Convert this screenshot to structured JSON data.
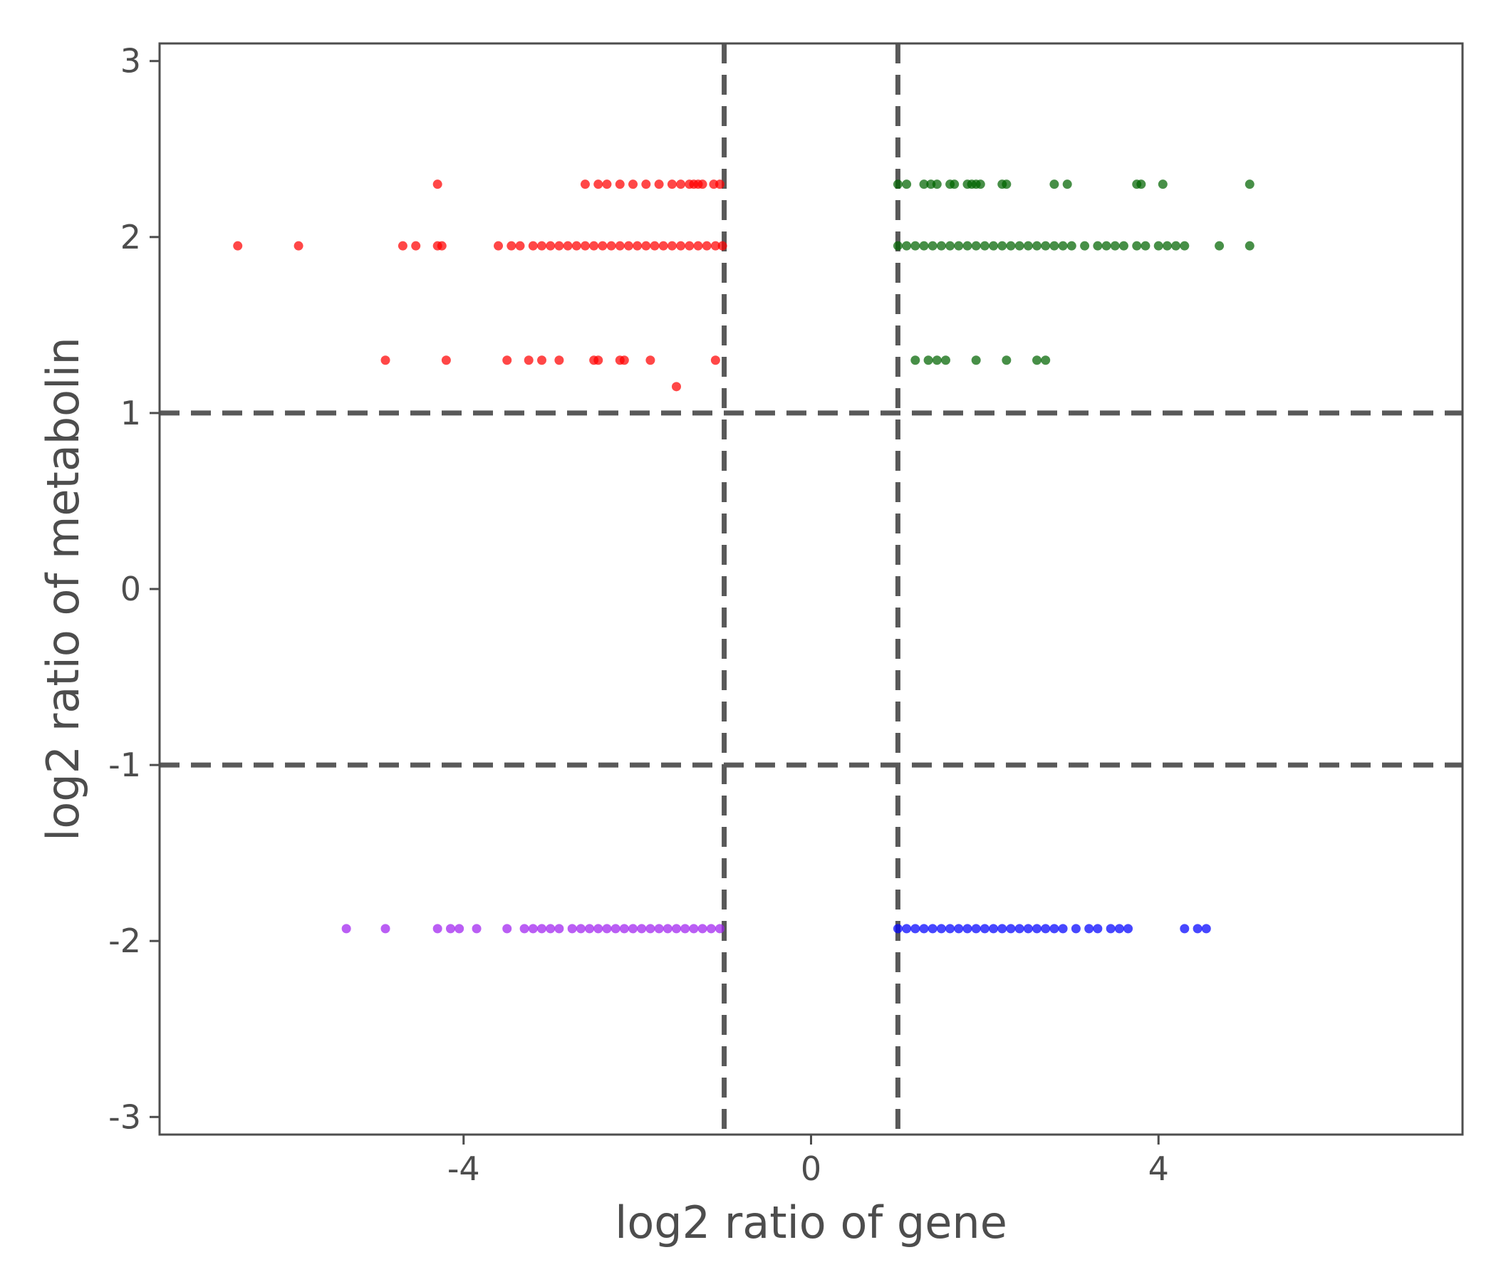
{
  "chart_data": {
    "type": "scatter",
    "title": "",
    "xlabel": "log2 ratio of gene",
    "ylabel": "log2 ratio of metabolin",
    "xlim": [
      -7.5,
      7.5
    ],
    "ylim": [
      -3.1,
      3.1
    ],
    "x_ticks": [
      -4,
      0,
      4
    ],
    "y_ticks": [
      3,
      2,
      1,
      0,
      -1,
      -2,
      -3
    ],
    "grid": false,
    "legend": "none",
    "threshold_lines": {
      "x": [
        -1,
        1
      ],
      "y": [
        1,
        -1
      ]
    },
    "threshold_color": "#595959",
    "series": [
      {
        "color": "#ff0000",
        "points": [
          [
            -4.3,
            2.3
          ],
          [
            -2.6,
            2.3
          ],
          [
            -2.45,
            2.3
          ],
          [
            -2.35,
            2.3
          ],
          [
            -2.2,
            2.3
          ],
          [
            -2.05,
            2.3
          ],
          [
            -1.9,
            2.3
          ],
          [
            -1.75,
            2.3
          ],
          [
            -1.6,
            2.3
          ],
          [
            -1.5,
            2.3
          ],
          [
            -1.4,
            2.3
          ],
          [
            -1.35,
            2.3
          ],
          [
            -1.3,
            2.3
          ],
          [
            -1.25,
            2.3
          ],
          [
            -1.12,
            2.3
          ],
          [
            -1.05,
            2.3
          ],
          [
            -6.6,
            1.95
          ],
          [
            -5.9,
            1.95
          ],
          [
            -4.7,
            1.95
          ],
          [
            -4.55,
            1.95
          ],
          [
            -4.3,
            1.95
          ],
          [
            -4.25,
            1.95
          ],
          [
            -3.6,
            1.95
          ],
          [
            -3.45,
            1.95
          ],
          [
            -3.35,
            1.95
          ],
          [
            -3.2,
            1.95
          ],
          [
            -3.1,
            1.95
          ],
          [
            -3.0,
            1.95
          ],
          [
            -2.9,
            1.95
          ],
          [
            -2.8,
            1.95
          ],
          [
            -2.7,
            1.95
          ],
          [
            -2.6,
            1.95
          ],
          [
            -2.5,
            1.95
          ],
          [
            -2.4,
            1.95
          ],
          [
            -2.3,
            1.95
          ],
          [
            -2.2,
            1.95
          ],
          [
            -2.1,
            1.95
          ],
          [
            -2.0,
            1.95
          ],
          [
            -1.9,
            1.95
          ],
          [
            -1.8,
            1.95
          ],
          [
            -1.7,
            1.95
          ],
          [
            -1.6,
            1.95
          ],
          [
            -1.5,
            1.95
          ],
          [
            -1.4,
            1.95
          ],
          [
            -1.3,
            1.95
          ],
          [
            -1.2,
            1.95
          ],
          [
            -1.1,
            1.95
          ],
          [
            -1.02,
            1.95
          ],
          [
            -4.9,
            1.3
          ],
          [
            -4.2,
            1.3
          ],
          [
            -3.5,
            1.3
          ],
          [
            -3.25,
            1.3
          ],
          [
            -3.1,
            1.3
          ],
          [
            -2.9,
            1.3
          ],
          [
            -2.5,
            1.3
          ],
          [
            -2.45,
            1.3
          ],
          [
            -2.2,
            1.3
          ],
          [
            -2.15,
            1.3
          ],
          [
            -1.85,
            1.3
          ],
          [
            -1.1,
            1.3
          ],
          [
            -1.55,
            1.15
          ]
        ]
      },
      {
        "color": "#006400",
        "points": [
          [
            1.0,
            2.3
          ],
          [
            1.1,
            2.3
          ],
          [
            1.3,
            2.3
          ],
          [
            1.38,
            2.3
          ],
          [
            1.45,
            2.3
          ],
          [
            1.6,
            2.3
          ],
          [
            1.65,
            2.3
          ],
          [
            1.8,
            2.3
          ],
          [
            1.85,
            2.3
          ],
          [
            1.9,
            2.3
          ],
          [
            1.95,
            2.3
          ],
          [
            2.2,
            2.3
          ],
          [
            2.25,
            2.3
          ],
          [
            2.8,
            2.3
          ],
          [
            2.95,
            2.3
          ],
          [
            3.75,
            2.3
          ],
          [
            3.8,
            2.3
          ],
          [
            4.05,
            2.3
          ],
          [
            5.05,
            2.3
          ],
          [
            1.0,
            1.95
          ],
          [
            1.1,
            1.95
          ],
          [
            1.2,
            1.95
          ],
          [
            1.3,
            1.95
          ],
          [
            1.4,
            1.95
          ],
          [
            1.5,
            1.95
          ],
          [
            1.6,
            1.95
          ],
          [
            1.7,
            1.95
          ],
          [
            1.8,
            1.95
          ],
          [
            1.9,
            1.95
          ],
          [
            2.0,
            1.95
          ],
          [
            2.1,
            1.95
          ],
          [
            2.2,
            1.95
          ],
          [
            2.3,
            1.95
          ],
          [
            2.4,
            1.95
          ],
          [
            2.5,
            1.95
          ],
          [
            2.6,
            1.95
          ],
          [
            2.7,
            1.95
          ],
          [
            2.8,
            1.95
          ],
          [
            2.9,
            1.95
          ],
          [
            3.0,
            1.95
          ],
          [
            3.15,
            1.95
          ],
          [
            3.3,
            1.95
          ],
          [
            3.4,
            1.95
          ],
          [
            3.5,
            1.95
          ],
          [
            3.6,
            1.95
          ],
          [
            3.75,
            1.95
          ],
          [
            3.85,
            1.95
          ],
          [
            4.0,
            1.95
          ],
          [
            4.1,
            1.95
          ],
          [
            4.2,
            1.95
          ],
          [
            4.3,
            1.95
          ],
          [
            4.7,
            1.95
          ],
          [
            5.05,
            1.95
          ],
          [
            1.2,
            1.3
          ],
          [
            1.35,
            1.3
          ],
          [
            1.45,
            1.3
          ],
          [
            1.55,
            1.3
          ],
          [
            1.9,
            1.3
          ],
          [
            2.25,
            1.3
          ],
          [
            2.6,
            1.3
          ],
          [
            2.7,
            1.3
          ]
        ]
      },
      {
        "color": "#a020f0",
        "points": [
          [
            -5.35,
            -1.93
          ],
          [
            -4.9,
            -1.93
          ],
          [
            -4.3,
            -1.93
          ],
          [
            -4.15,
            -1.93
          ],
          [
            -4.05,
            -1.93
          ],
          [
            -3.85,
            -1.93
          ],
          [
            -3.5,
            -1.93
          ],
          [
            -3.3,
            -1.93
          ],
          [
            -3.2,
            -1.93
          ],
          [
            -3.1,
            -1.93
          ],
          [
            -3.0,
            -1.93
          ],
          [
            -2.9,
            -1.93
          ],
          [
            -2.75,
            -1.93
          ],
          [
            -2.65,
            -1.93
          ],
          [
            -2.55,
            -1.93
          ],
          [
            -2.45,
            -1.93
          ],
          [
            -2.35,
            -1.93
          ],
          [
            -2.25,
            -1.93
          ],
          [
            -2.15,
            -1.93
          ],
          [
            -2.05,
            -1.93
          ],
          [
            -1.95,
            -1.93
          ],
          [
            -1.85,
            -1.93
          ],
          [
            -1.75,
            -1.93
          ],
          [
            -1.65,
            -1.93
          ],
          [
            -1.55,
            -1.93
          ],
          [
            -1.45,
            -1.93
          ],
          [
            -1.35,
            -1.93
          ],
          [
            -1.25,
            -1.93
          ],
          [
            -1.15,
            -1.93
          ],
          [
            -1.05,
            -1.93
          ]
        ]
      },
      {
        "color": "#0000ff",
        "points": [
          [
            1.0,
            -1.93
          ],
          [
            1.1,
            -1.93
          ],
          [
            1.2,
            -1.93
          ],
          [
            1.3,
            -1.93
          ],
          [
            1.4,
            -1.93
          ],
          [
            1.5,
            -1.93
          ],
          [
            1.6,
            -1.93
          ],
          [
            1.7,
            -1.93
          ],
          [
            1.8,
            -1.93
          ],
          [
            1.9,
            -1.93
          ],
          [
            2.0,
            -1.93
          ],
          [
            2.1,
            -1.93
          ],
          [
            2.2,
            -1.93
          ],
          [
            2.3,
            -1.93
          ],
          [
            2.4,
            -1.93
          ],
          [
            2.5,
            -1.93
          ],
          [
            2.6,
            -1.93
          ],
          [
            2.7,
            -1.93
          ],
          [
            2.8,
            -1.93
          ],
          [
            2.9,
            -1.93
          ],
          [
            3.05,
            -1.93
          ],
          [
            3.2,
            -1.93
          ],
          [
            3.3,
            -1.93
          ],
          [
            3.45,
            -1.93
          ],
          [
            3.55,
            -1.93
          ],
          [
            3.65,
            -1.93
          ],
          [
            4.3,
            -1.93
          ],
          [
            4.45,
            -1.93
          ],
          [
            4.55,
            -1.93
          ]
        ]
      }
    ]
  }
}
